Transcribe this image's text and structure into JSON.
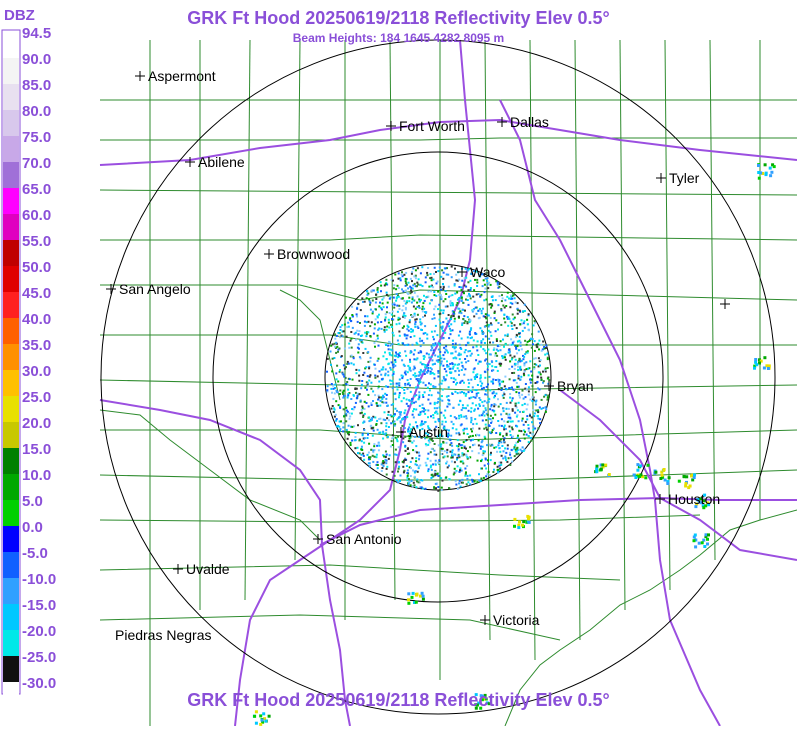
{
  "header": {
    "title": "GRK Ft Hood 20250619/2118 Reflectivity Elev 0.5°",
    "subtitle": "Beam Heights: 184 1645 4282 8095 m",
    "footer_title": "GRK Ft Hood 20250619/2118 Reflectivity Elev 0.5°"
  },
  "legend": {
    "unit": "DBZ",
    "ticks": [
      "94.5",
      "90.0",
      "85.0",
      "80.0",
      "75.0",
      "70.0",
      "65.0",
      "60.0",
      "55.0",
      "50.0",
      "45.0",
      "40.0",
      "35.0",
      "30.0",
      "25.0",
      "20.0",
      "15.0",
      "10.0",
      "5.0",
      "0.0",
      "-5.0",
      "-10.0",
      "-15.0",
      "-20.0",
      "-25.0",
      "-30.0"
    ],
    "colors": [
      "#ffffff",
      "#f4f4f4",
      "#e8e0f0",
      "#d8c8ec",
      "#c8a8e8",
      "#a070d8",
      "#ff00ff",
      "#e000c0",
      "#c00000",
      "#e00000",
      "#ff2020",
      "#ff6000",
      "#ff9000",
      "#ffc000",
      "#e8e000",
      "#c8c800",
      "#008000",
      "#00a800",
      "#00d000",
      "#0000ff",
      "#1060ff",
      "#30a0ff",
      "#00c8ff",
      "#00e8e8",
      "#101010",
      "#ffffff"
    ]
  },
  "cities": [
    {
      "name": "Aspermont"
    },
    {
      "name": "Abilene"
    },
    {
      "name": "Fort Worth"
    },
    {
      "name": "Dallas"
    },
    {
      "name": "Tyler"
    },
    {
      "name": "Brownwood"
    },
    {
      "name": "Waco"
    },
    {
      "name": "San Angelo"
    },
    {
      "name": "Bryan"
    },
    {
      "name": "Austin"
    },
    {
      "name": "Houston"
    },
    {
      "name": "San Antonio"
    },
    {
      "name": "Uvalde"
    },
    {
      "name": "Victoria"
    },
    {
      "name": "Piedras Negras"
    }
  ],
  "map": {
    "range_rings": 3,
    "colors": {
      "ring": "#000000",
      "county": "#2e8b2e",
      "road": "#9b4fe0",
      "title": "#8a4fd8"
    }
  }
}
